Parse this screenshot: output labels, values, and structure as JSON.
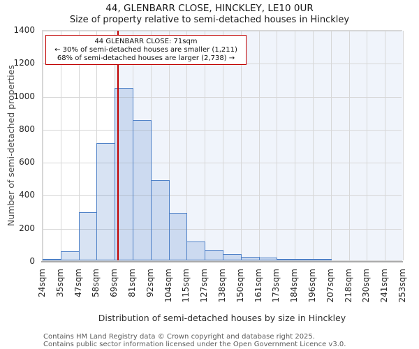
{
  "title": "44, GLENBARR CLOSE, HINCKLEY, LE10 0UR",
  "subtitle": "Size of property relative to semi-detached houses in Hinckley",
  "annotation": {
    "line1": "44 GLENBARR CLOSE: 71sqm",
    "line2": "← 30% of semi-detached houses are smaller (1,211)",
    "line3": "68% of semi-detached houses are larger (2,738) →"
  },
  "footer": {
    "line1": "Contains HM Land Registry data © Crown copyright and database right 2025.",
    "line2": "Contains public sector information licensed under the Open Government Licence v3.0."
  },
  "chart_data": {
    "type": "bar",
    "title": "44, GLENBARR CLOSE, HINCKLEY, LE10 0UR",
    "subtitle": "Size of property relative to semi-detached houses in Hinckley",
    "xlabel": "Distribution of semi-detached houses by size in Hinckley",
    "ylabel": "Number of semi-detached properties",
    "bin_edges_sqm": [
      24,
      35,
      47,
      58,
      69,
      81,
      92,
      104,
      115,
      127,
      138,
      150,
      161,
      173,
      184,
      196,
      207,
      218,
      230,
      241,
      253
    ],
    "x_tick_labels": [
      "24sqm",
      "35sqm",
      "47sqm",
      "58sqm",
      "69sqm",
      "81sqm",
      "92sqm",
      "104sqm",
      "115sqm",
      "127sqm",
      "138sqm",
      "150sqm",
      "161sqm",
      "173sqm",
      "184sqm",
      "196sqm",
      "207sqm",
      "218sqm",
      "230sqm",
      "241sqm",
      "253sqm"
    ],
    "values": [
      5,
      57,
      290,
      710,
      1045,
      852,
      485,
      288,
      113,
      65,
      38,
      22,
      15,
      9,
      5,
      4,
      0,
      0,
      0,
      0
    ],
    "ylim": [
      0,
      1400
    ],
    "y_ticks": [
      0,
      200,
      400,
      600,
      800,
      1000,
      1200,
      1400
    ],
    "grid": "on",
    "marker_sqm": 71,
    "marker_label": "71sqm",
    "shade_from_sqm": 69,
    "colors": {
      "bar_edge": "#4f81c7",
      "bar_fill": "#d9e3f4",
      "marker_line": "#c00000",
      "annotation_border": "#c00000",
      "shade": "#f0f4fb",
      "grid": "#d7d7d7",
      "axis_line": "#ababab"
    }
  }
}
